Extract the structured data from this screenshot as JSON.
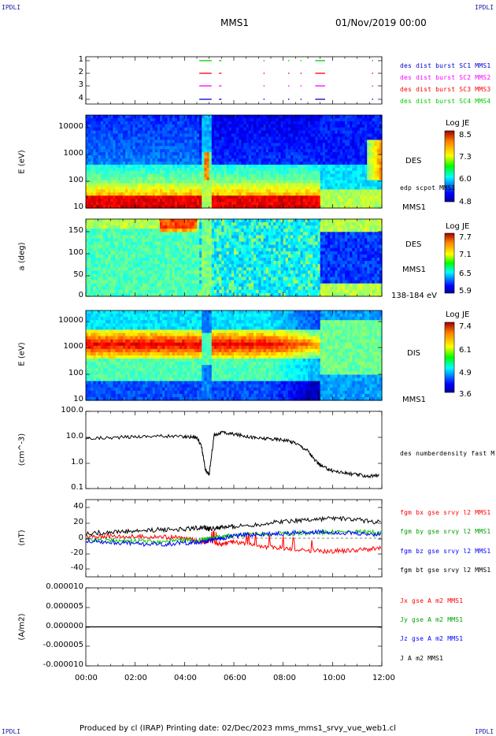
{
  "header": {
    "corner_left_top": "IPDLI",
    "corner_right_top": "IPDLI",
    "corner_left_bottom": "IPDLI",
    "corner_right_bottom": "IPDLI",
    "spacecraft": "MMS1",
    "datetime": "01/Nov/2019 00:00"
  },
  "footer": {
    "text": "Produced by cl (IRAP)   Printing date: 02/Dec/2023   mms_mms1_srvy_vue_web1.cl"
  },
  "colors": {
    "blue": "#0000ff",
    "red": "#ff0000",
    "green": "#00c800",
    "magenta": "#ff00ff",
    "black": "#000000"
  },
  "chart_data": [
    {
      "type": "scatter",
      "id": "burst",
      "yticks": [
        "1",
        "2",
        "3",
        "4"
      ],
      "legend": [
        {
          "label": "des dist burst SC1 MMS1",
          "color": "#0000cc"
        },
        {
          "label": "des dist burst SC2 MMS2",
          "color": "#ff00ff"
        },
        {
          "label": "des dist burst SC3 MMS3",
          "color": "#ff0000"
        },
        {
          "label": "des dist burst SC4 MMS4",
          "color": "#00cc00"
        }
      ]
    },
    {
      "type": "heatmap",
      "id": "des-energy",
      "ylabel": "E (eV)",
      "yticks": [
        "10000",
        "1000",
        "100",
        "10"
      ],
      "right_labels": [
        "DES",
        "edp scpot MMS1",
        "MMS1"
      ],
      "colorbar": {
        "title": "Log JE",
        "ticks": [
          "8.5",
          "7.3",
          "6.0",
          "4.8"
        ]
      }
    },
    {
      "type": "heatmap",
      "id": "des-pitch",
      "ylabel": "a (deg)",
      "yticks": [
        "150",
        "100",
        "50",
        "0"
      ],
      "right_labels": [
        "DES",
        "MMS1",
        "138-184 eV"
      ],
      "colorbar": {
        "title": "Log JE",
        "ticks": [
          "7.7",
          "7.1",
          "6.5",
          "5.9"
        ]
      }
    },
    {
      "type": "heatmap",
      "id": "dis-energy",
      "ylabel": "E (eV)",
      "yticks": [
        "10000",
        "1000",
        "100",
        "10"
      ],
      "right_labels": [
        "DIS",
        "MMS1"
      ],
      "colorbar": {
        "title": "Log JE",
        "ticks": [
          "7.4",
          "6.1",
          "4.9",
          "3.6"
        ]
      }
    },
    {
      "type": "line",
      "id": "density",
      "ylabel": "(cm^-3)",
      "yticks": [
        "100.0",
        "10.0",
        "1.0",
        "0.1"
      ],
      "log_y": true,
      "series": [
        {
          "name": "des numberdensity fast M",
          "color": "#000000",
          "x": [
            0,
            1,
            2,
            3,
            4,
            4.5,
            4.7,
            4.85,
            5.0,
            5.2,
            5.5,
            6,
            6.5,
            7,
            7.5,
            8,
            8.5,
            9,
            9.3,
            9.6,
            10,
            10.5,
            11,
            11.5,
            11.9
          ],
          "y": [
            9,
            9.5,
            10.5,
            11,
            10.5,
            10,
            4,
            0.5,
            0.35,
            12,
            15,
            13,
            11,
            9,
            8.5,
            8,
            6,
            3,
            1.2,
            0.7,
            0.5,
            0.4,
            0.35,
            0.3,
            0.33
          ]
        }
      ]
    },
    {
      "type": "line",
      "id": "fgm",
      "ylabel": "(nT)",
      "yticks": [
        "40",
        "20",
        "0",
        "-20",
        "-40"
      ],
      "ylim": [
        -50,
        50
      ],
      "series": [
        {
          "name": "fgm bx gse srvy l2 MMS1",
          "color": "#ff0000",
          "x": [
            0,
            1,
            2,
            3,
            4,
            4.8,
            5.0,
            5.5,
            6,
            7,
            8,
            9,
            10,
            11,
            12
          ],
          "y": [
            2,
            3,
            2,
            2,
            0,
            -5,
            -3,
            -8,
            -5,
            -10,
            -13,
            -16,
            -17,
            -15,
            -13
          ]
        },
        {
          "name": "fgm by gse srvy l2 MMS1",
          "color": "#00c800",
          "x": [
            0,
            1,
            2,
            3,
            4,
            4.8,
            5.0,
            5.5,
            6,
            7,
            8,
            9,
            10,
            11,
            12
          ],
          "y": [
            -2,
            -3,
            -4,
            -5,
            -3,
            -2,
            0,
            2,
            4,
            5,
            6,
            7,
            8,
            8,
            7
          ]
        },
        {
          "name": "fgm bz gse srvy l2 MMS1",
          "color": "#0000ff",
          "x": [
            0,
            1,
            2,
            3,
            4,
            4.8,
            5.0,
            5.5,
            6,
            7,
            8,
            9,
            10,
            11,
            12
          ],
          "y": [
            -3,
            -5,
            -7,
            -8,
            -6,
            -5,
            -3,
            0,
            3,
            5,
            6,
            8,
            8,
            6,
            5
          ]
        },
        {
          "name": "fgm bt gse srvy l2 MMS1",
          "color": "#000000",
          "x": [
            0,
            1,
            2,
            3,
            4,
            4.8,
            5.0,
            5.5,
            6,
            7,
            8,
            9,
            10,
            11,
            12
          ],
          "y": [
            6,
            8,
            9,
            11,
            12,
            14,
            12,
            14,
            15,
            18,
            22,
            24,
            26,
            24,
            20
          ]
        }
      ]
    },
    {
      "type": "line",
      "id": "current",
      "ylabel": "(A/m2)",
      "yticks": [
        "0.000010",
        "0.000005",
        "0.000000",
        "-0.000005",
        "-0.000010"
      ],
      "ylim": [
        -1e-05,
        1e-05
      ],
      "series": [
        {
          "name": "Jx gse A m2 MMS1",
          "color": "#ff0000"
        },
        {
          "name": "Jy gse A m2 MMS1",
          "color": "#00c800"
        },
        {
          "name": "Jz gse A m2 MMS1",
          "color": "#0000ff"
        },
        {
          "name": "J A m2 MMS1",
          "color": "#000000"
        }
      ]
    }
  ],
  "xaxis": {
    "ticks": [
      "00:00",
      "02:00",
      "04:00",
      "06:00",
      "08:00",
      "10:00",
      "12:00"
    ]
  }
}
